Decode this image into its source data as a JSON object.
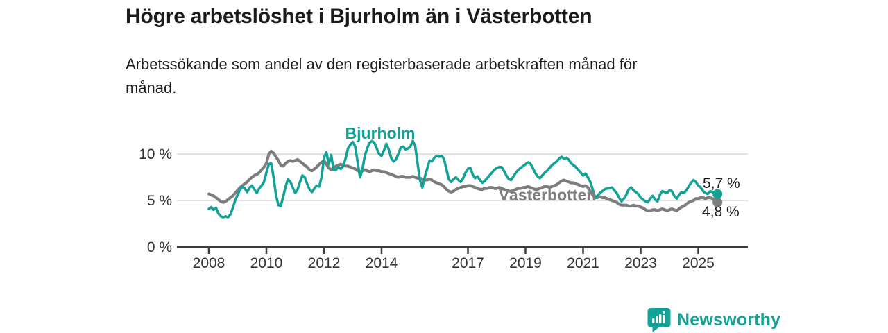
{
  "header": {
    "title": "Högre arbetslöshet i Bjurholm än i Västerbotten",
    "subtitle_line1": "Arbetssökande som andel av den registerbaserade arbetskraften månad för",
    "subtitle_line2": "månad."
  },
  "footer": {
    "brand": "Newsworthy"
  },
  "colors": {
    "bjurholm": "#15a296",
    "vasterbotten": "#7d7d7d",
    "grid": "#e2e2e2",
    "axis": "#3c3c3c",
    "text": "#1a1a1a"
  },
  "chart_data": {
    "type": "line",
    "title": "Högre arbetslöshet i Bjurholm än i Västerbotten",
    "subtitle": "Arbetssökande som andel av den registerbaserade arbetskraften månad för månad.",
    "unit": "%",
    "x_start": 2008.0,
    "x_step_years": 0.0833333,
    "x_tick_values": [
      2008,
      2010,
      2012,
      2014,
      2017,
      2019,
      2021,
      2023,
      2025
    ],
    "x_tick_labels": [
      "2008",
      "2010",
      "2012",
      "2014",
      "2017",
      "2019",
      "2021",
      "2023",
      "2025"
    ],
    "y_ticks": [
      {
        "value": 0,
        "label": "0 %"
      },
      {
        "value": 5,
        "label": "5 %"
      },
      {
        "value": 10,
        "label": "10 %"
      }
    ],
    "xlim": [
      2006.9,
      2026.7
    ],
    "ylim": [
      0,
      12.5
    ],
    "grid": "horizontal gridlines at 5 and 10, dark baseline at 0",
    "legend": "inline series name labels next to lines, value labels at line ends",
    "series": [
      {
        "name": "Bjurholm",
        "color": "#15a296",
        "end_label": "5,7 %",
        "last_value": 5.7,
        "values": [
          4.1,
          4.3,
          4.0,
          4.2,
          3.6,
          3.3,
          3.2,
          3.3,
          3.2,
          3.5,
          4.2,
          5.0,
          5.6,
          6.2,
          6.5,
          6.3,
          5.9,
          6.4,
          6.6,
          6.2,
          5.8,
          6.3,
          6.6,
          7.0,
          8.0,
          8.9,
          9.0,
          7.5,
          5.6,
          4.5,
          4.4,
          5.4,
          6.5,
          7.3,
          7.0,
          6.4,
          5.8,
          6.2,
          7.0,
          7.7,
          7.5,
          6.8,
          6.2,
          5.9,
          6.3,
          6.6,
          6.5,
          7.5,
          9.6,
          10.2,
          8.9,
          9.9,
          8.3,
          8.3,
          8.6,
          8.4,
          8.7,
          9.5,
          10.6,
          11.0,
          11.3,
          10.8,
          9.2,
          7.5,
          8.3,
          9.8,
          10.6,
          11.2,
          11.4,
          11.2,
          10.6,
          10.0,
          9.8,
          10.4,
          11.1,
          10.5,
          9.6,
          9.2,
          9.4,
          10.0,
          10.7,
          10.8,
          10.5,
          10.6,
          10.8,
          11.4,
          10.9,
          9.0,
          7.2,
          6.4,
          7.5,
          8.4,
          9.3,
          9.2,
          9.6,
          9.8,
          9.7,
          9.8,
          9.5,
          8.4,
          7.3,
          7.0,
          7.3,
          7.5,
          7.2,
          7.0,
          7.4,
          8.0,
          8.4,
          8.5,
          7.8,
          7.4,
          7.6,
          7.2,
          6.9,
          7.1,
          7.4,
          7.7,
          8.0,
          8.3,
          8.5,
          8.6,
          8.6,
          8.2,
          7.7,
          7.3,
          7.2,
          7.6,
          8.0,
          8.3,
          8.5,
          8.7,
          8.9,
          9.1,
          9.0,
          8.5,
          8.0,
          7.6,
          7.4,
          7.7,
          8.0,
          8.2,
          8.5,
          8.8,
          9.0,
          9.2,
          9.5,
          9.7,
          9.5,
          9.6,
          9.4,
          9.0,
          8.8,
          8.6,
          8.3,
          8.0,
          7.7,
          7.9,
          7.5,
          7.0,
          6.2,
          5.3,
          5.5,
          5.8,
          6.0,
          6.2,
          6.3,
          6.3,
          6.4,
          6.1,
          5.8,
          5.3,
          4.9,
          5.2,
          5.6,
          6.2,
          6.4,
          6.1,
          5.9,
          5.7,
          5.3,
          5.1,
          4.9,
          4.8,
          5.2,
          5.5,
          5.1,
          4.9,
          5.6,
          6.0,
          5.9,
          5.8,
          6.1,
          6.0,
          5.5,
          5.2,
          5.6,
          5.9,
          5.8,
          6.1,
          6.5,
          6.9,
          7.2,
          7.0,
          6.6,
          6.4,
          6.0,
          5.8,
          5.7,
          6.0,
          5.9,
          5.8,
          5.7
        ]
      },
      {
        "name": "Västerbotten",
        "color": "#7d7d7d",
        "end_label": "4,8 %",
        "last_value": 4.8,
        "values": [
          5.7,
          5.6,
          5.5,
          5.3,
          5.1,
          4.9,
          4.8,
          4.9,
          5.1,
          5.3,
          5.5,
          5.8,
          6.1,
          6.4,
          6.6,
          6.8,
          7.0,
          7.3,
          7.5,
          7.7,
          7.8,
          8.0,
          8.3,
          8.6,
          9.0,
          10.0,
          10.3,
          10.1,
          9.7,
          9.3,
          8.8,
          8.7,
          9.0,
          9.2,
          9.3,
          9.2,
          9.3,
          9.4,
          9.2,
          9.0,
          8.8,
          8.6,
          8.3,
          8.2,
          8.4,
          8.6,
          8.9,
          9.1,
          9.3,
          8.9,
          8.5,
          8.3,
          8.5,
          8.7,
          8.8,
          8.9,
          8.8,
          8.7,
          8.7,
          8.6,
          8.5,
          8.4,
          8.2,
          8.1,
          8.2,
          8.3,
          8.2,
          8.1,
          8.2,
          8.3,
          8.2,
          8.2,
          8.1,
          8.1,
          8.0,
          7.9,
          7.8,
          7.7,
          7.6,
          7.5,
          7.6,
          7.6,
          7.5,
          7.5,
          7.5,
          7.6,
          7.5,
          7.4,
          7.4,
          7.3,
          7.2,
          7.2,
          7.3,
          7.2,
          7.0,
          6.9,
          6.8,
          6.7,
          6.5,
          6.2,
          6.0,
          5.9,
          6.0,
          6.2,
          6.3,
          6.4,
          6.5,
          6.5,
          6.6,
          6.6,
          6.5,
          6.4,
          6.3,
          6.2,
          6.2,
          6.3,
          6.3,
          6.4,
          6.4,
          6.3,
          6.3,
          6.4,
          6.3,
          6.2,
          6.1,
          6.0,
          6.0,
          6.1,
          6.2,
          6.3,
          6.3,
          6.4,
          6.4,
          6.5,
          6.4,
          6.3,
          6.2,
          6.2,
          6.3,
          6.4,
          6.5,
          6.5,
          6.4,
          6.5,
          6.6,
          6.7,
          6.9,
          7.1,
          7.2,
          7.1,
          7.0,
          6.9,
          6.9,
          6.8,
          6.7,
          6.6,
          6.5,
          6.6,
          6.4,
          6.0,
          5.6,
          5.3,
          5.3,
          5.4,
          5.3,
          5.3,
          5.2,
          5.1,
          5.0,
          4.9,
          4.8,
          4.6,
          4.5,
          4.5,
          4.5,
          4.4,
          4.4,
          4.5,
          4.4,
          4.4,
          4.3,
          4.2,
          4.0,
          3.9,
          3.9,
          4.0,
          4.0,
          3.9,
          4.0,
          4.1,
          4.0,
          3.9,
          4.0,
          4.1,
          4.0,
          3.9,
          4.1,
          4.3,
          4.4,
          4.6,
          4.8,
          4.9,
          5.0,
          5.2,
          5.2,
          5.3,
          5.3,
          5.2,
          5.3,
          5.3,
          5.2,
          5.0,
          4.8
        ]
      }
    ]
  }
}
